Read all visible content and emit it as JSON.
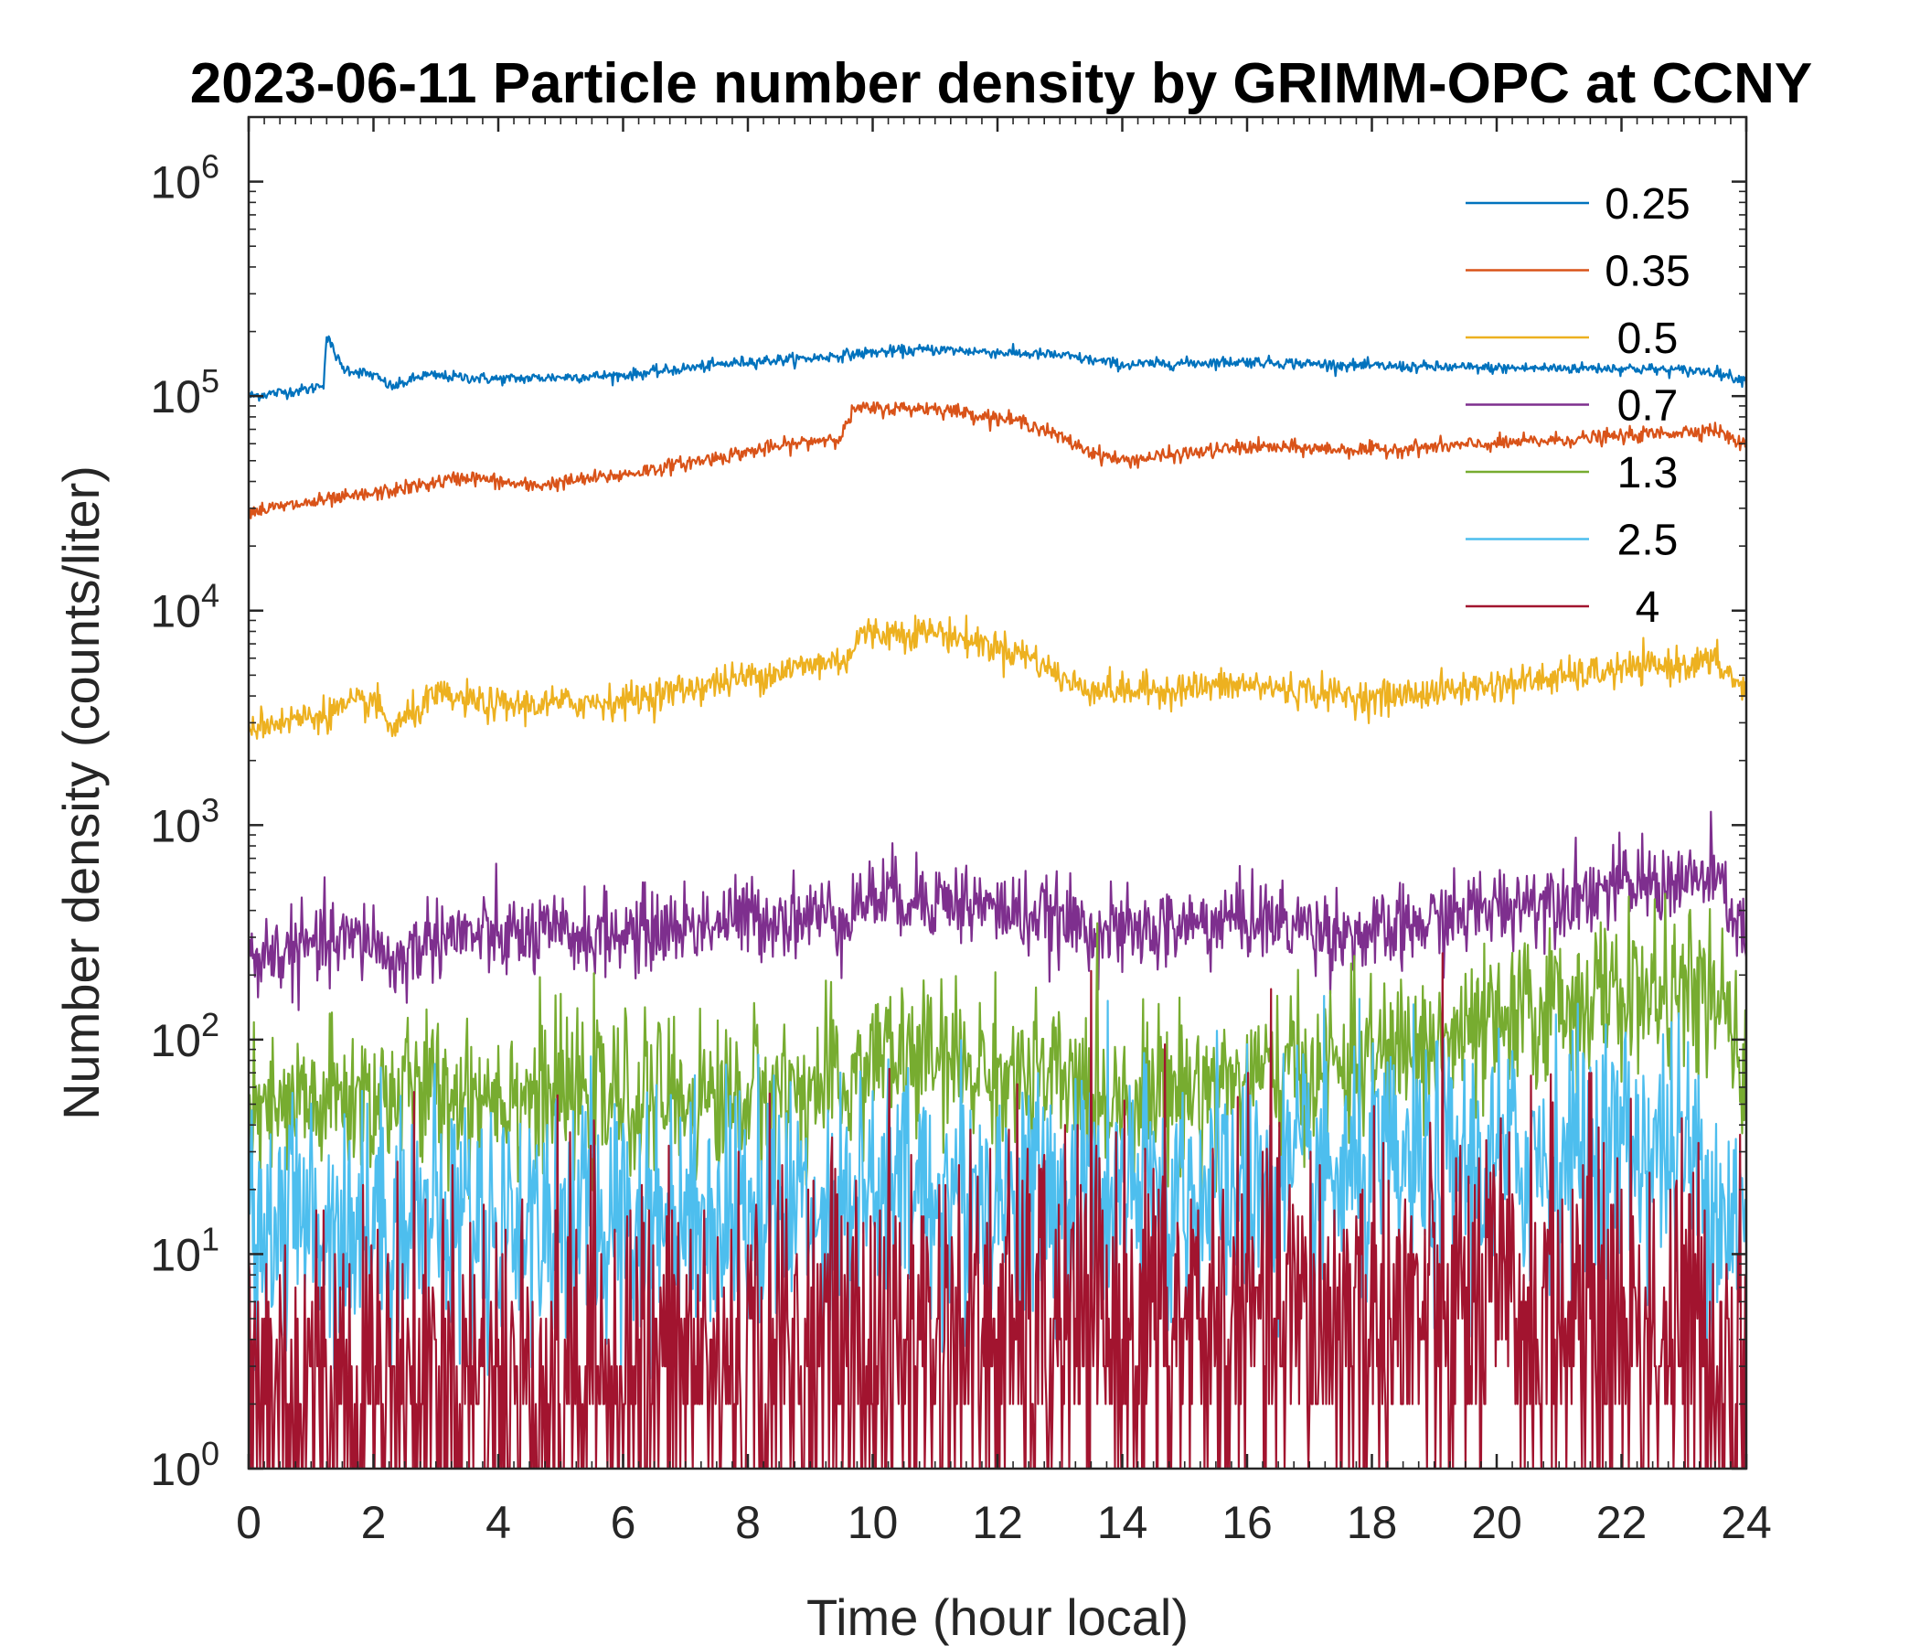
{
  "chart_data": {
    "type": "line",
    "title": "2023-06-11 Particle number density by GRIMM-OPC at CCNY",
    "xlabel": "Time (hour local)",
    "ylabel": "Number density (counts/liter)",
    "xlim": [
      0,
      24
    ],
    "x_ticks": [
      0,
      2,
      4,
      6,
      8,
      10,
      12,
      14,
      16,
      18,
      20,
      22,
      24
    ],
    "x_tick_labels": [
      "0",
      "2",
      "4",
      "6",
      "8",
      "10",
      "12",
      "14",
      "16",
      "18",
      "20",
      "22",
      "24"
    ],
    "y_scale": "log",
    "ylim": [
      1,
      2000000
    ],
    "y_ticks": [
      1,
      10,
      100,
      1000,
      10000,
      100000,
      1000000
    ],
    "y_tick_bases": [
      "10",
      "10",
      "10",
      "10",
      "10",
      "10",
      "10"
    ],
    "y_tick_exponents": [
      "0",
      "1",
      "2",
      "3",
      "4",
      "5",
      "6"
    ],
    "legend_position": "top-right",
    "grid": false,
    "series": [
      {
        "name": "0.25",
        "color": "#0072BD",
        "noise": 0.03,
        "x": [
          0,
          1,
          1.2,
          1.25,
          1.5,
          2,
          2.3,
          2.8,
          4,
          6,
          8,
          9,
          10,
          11,
          12,
          13,
          14,
          16,
          18,
          20,
          22,
          23.5,
          24
        ],
        "values": [
          100000,
          108000,
          115000,
          190000,
          135000,
          125000,
          110000,
          125000,
          120000,
          125000,
          145000,
          150000,
          160000,
          165000,
          160000,
          155000,
          140000,
          145000,
          138000,
          135000,
          135000,
          130000,
          118000
        ]
      },
      {
        "name": "0.35",
        "color": "#D95319",
        "noise": 0.04,
        "x": [
          0,
          2,
          3.5,
          4.5,
          6,
          8,
          9.5,
          9.7,
          11,
          12.5,
          13.5,
          14,
          16,
          18,
          20,
          22,
          23.5,
          24
        ],
        "values": [
          29000,
          35000,
          42000,
          38000,
          43000,
          55000,
          65000,
          87000,
          88000,
          75000,
          55000,
          50000,
          58000,
          56000,
          60000,
          65000,
          70000,
          58000
        ]
      },
      {
        "name": "0.5",
        "color": "#EDB120",
        "noise": 0.09,
        "x": [
          0,
          1,
          2,
          2.3,
          3,
          4,
          6,
          8,
          9.6,
          9.8,
          11,
          12.5,
          13.2,
          14,
          16,
          18,
          20,
          22,
          23.5,
          24
        ],
        "values": [
          2900,
          3200,
          3800,
          2800,
          4000,
          3600,
          3800,
          4900,
          6000,
          7800,
          8000,
          6200,
          4500,
          4200,
          4500,
          3900,
          4500,
          5300,
          5800,
          4200
        ]
      },
      {
        "name": "0.7",
        "color": "#7E2F8E",
        "noise": 0.22,
        "x": [
          0,
          1,
          2,
          2.3,
          3,
          4,
          6,
          8,
          9.5,
          10,
          11,
          12.5,
          14,
          16,
          17.5,
          18,
          20,
          22,
          23.5,
          24
        ],
        "values": [
          240,
          270,
          300,
          220,
          310,
          300,
          310,
          370,
          380,
          470,
          460,
          380,
          310,
          370,
          320,
          300,
          420,
          520,
          560,
          300
        ]
      },
      {
        "name": "1.3",
        "color": "#77AC30",
        "noise": 0.42,
        "x": [
          0,
          1,
          2,
          4,
          6,
          8,
          9.6,
          10,
          11,
          12,
          14,
          16,
          18,
          19,
          20,
          21,
          22,
          23.5,
          24
        ],
        "values": [
          40,
          50,
          55,
          58,
          52,
          55,
          60,
          85,
          80,
          70,
          55,
          65,
          80,
          95,
          110,
          150,
          165,
          160,
          65
        ]
      },
      {
        "name": "2.5",
        "color": "#4DBEEE",
        "noise": 0.7,
        "x": [
          0,
          2,
          4,
          6,
          8,
          10,
          12,
          14,
          16,
          18,
          19,
          20,
          21,
          22,
          23,
          24
        ],
        "values": [
          14,
          15,
          14,
          15,
          16,
          19,
          19,
          18,
          21,
          22,
          24,
          26,
          30,
          32,
          30,
          12
        ]
      },
      {
        "name": "4",
        "color": "#A2142F",
        "noise": 1.1,
        "x": [
          0,
          2,
          4,
          6,
          8,
          10,
          12,
          14,
          16,
          18,
          20,
          22,
          24
        ],
        "values": [
          2.5,
          2.5,
          2.6,
          2.8,
          3.0,
          3.6,
          4.0,
          4.2,
          4.5,
          4.8,
          5.0,
          5.0,
          3.0
        ]
      }
    ]
  }
}
